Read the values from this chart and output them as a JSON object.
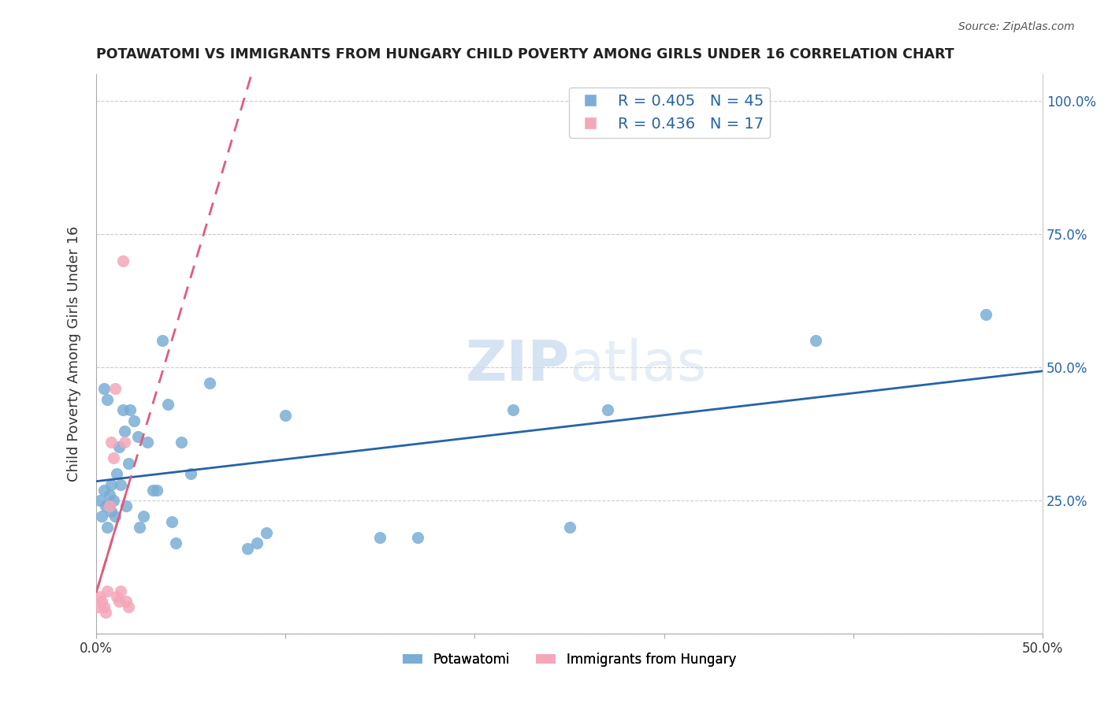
{
  "title": "POTAWATOMI VS IMMIGRANTS FROM HUNGARY CHILD POVERTY AMONG GIRLS UNDER 16 CORRELATION CHART",
  "source": "Source: ZipAtlas.com",
  "ylabel": "Child Poverty Among Girls Under 16",
  "xlim": [
    0.0,
    0.5
  ],
  "ylim": [
    0.0,
    1.05
  ],
  "blue_color": "#7aaed6",
  "pink_color": "#f4a7b9",
  "blue_line_color": "#2563a8",
  "pink_line_color": "#e05c7e",
  "R_blue": 0.405,
  "N_blue": 45,
  "R_pink": 0.436,
  "N_pink": 17,
  "legend_label_blue": "Potawatomi",
  "legend_label_pink": "Immigrants from Hungary",
  "blue_scatter_x": [
    0.002,
    0.003,
    0.004,
    0.005,
    0.006,
    0.007,
    0.008,
    0.008,
    0.009,
    0.01,
    0.011,
    0.012,
    0.013,
    0.014,
    0.015,
    0.016,
    0.017,
    0.018,
    0.02,
    0.022,
    0.023,
    0.025,
    0.027,
    0.03,
    0.032,
    0.035,
    0.038,
    0.04,
    0.042,
    0.045,
    0.05,
    0.06,
    0.08,
    0.085,
    0.09,
    0.1,
    0.15,
    0.17,
    0.22,
    0.25,
    0.27,
    0.38,
    0.47,
    0.004,
    0.006
  ],
  "blue_scatter_y": [
    0.25,
    0.22,
    0.27,
    0.24,
    0.2,
    0.26,
    0.23,
    0.28,
    0.25,
    0.22,
    0.3,
    0.35,
    0.28,
    0.42,
    0.38,
    0.24,
    0.32,
    0.42,
    0.4,
    0.37,
    0.2,
    0.22,
    0.36,
    0.27,
    0.27,
    0.55,
    0.43,
    0.21,
    0.17,
    0.36,
    0.3,
    0.47,
    0.16,
    0.17,
    0.19,
    0.41,
    0.18,
    0.18,
    0.42,
    0.2,
    0.42,
    0.55,
    0.6,
    0.46,
    0.44
  ],
  "pink_scatter_x": [
    0.001,
    0.002,
    0.003,
    0.004,
    0.005,
    0.006,
    0.007,
    0.008,
    0.009,
    0.01,
    0.011,
    0.012,
    0.013,
    0.014,
    0.015,
    0.016,
    0.017
  ],
  "pink_scatter_y": [
    0.05,
    0.07,
    0.06,
    0.05,
    0.04,
    0.08,
    0.24,
    0.36,
    0.33,
    0.46,
    0.07,
    0.06,
    0.08,
    0.7,
    0.36,
    0.06,
    0.05
  ]
}
